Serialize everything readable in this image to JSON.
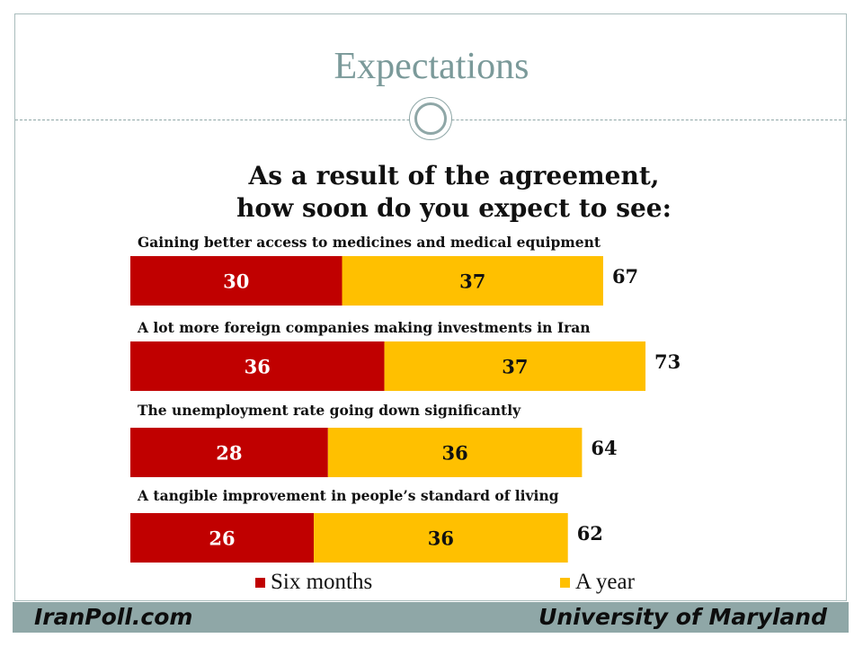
{
  "slide": {
    "title": "Expectations"
  },
  "chart_data": {
    "type": "bar",
    "orientation": "horizontal",
    "stacked": true,
    "title_lines": [
      "As a result of the agreement,",
      "how soon do you expect to see:"
    ],
    "categories": [
      "Gaining better access to medicines and medical equipment",
      "A lot more foreign companies making investments in Iran",
      "The unemployment rate going down significantly",
      "A tangible improvement in people’s standard of living"
    ],
    "series": [
      {
        "name": "Six months",
        "color": "#c00000",
        "values": [
          30,
          36,
          28,
          26
        ]
      },
      {
        "name": "A year",
        "color": "#ffc000",
        "values": [
          37,
          37,
          36,
          36
        ]
      }
    ],
    "totals": [
      67,
      73,
      64,
      62
    ],
    "legend_position": "bottom",
    "grid": false
  },
  "footer": {
    "left": "IranPoll.com",
    "right": "University of Maryland"
  }
}
